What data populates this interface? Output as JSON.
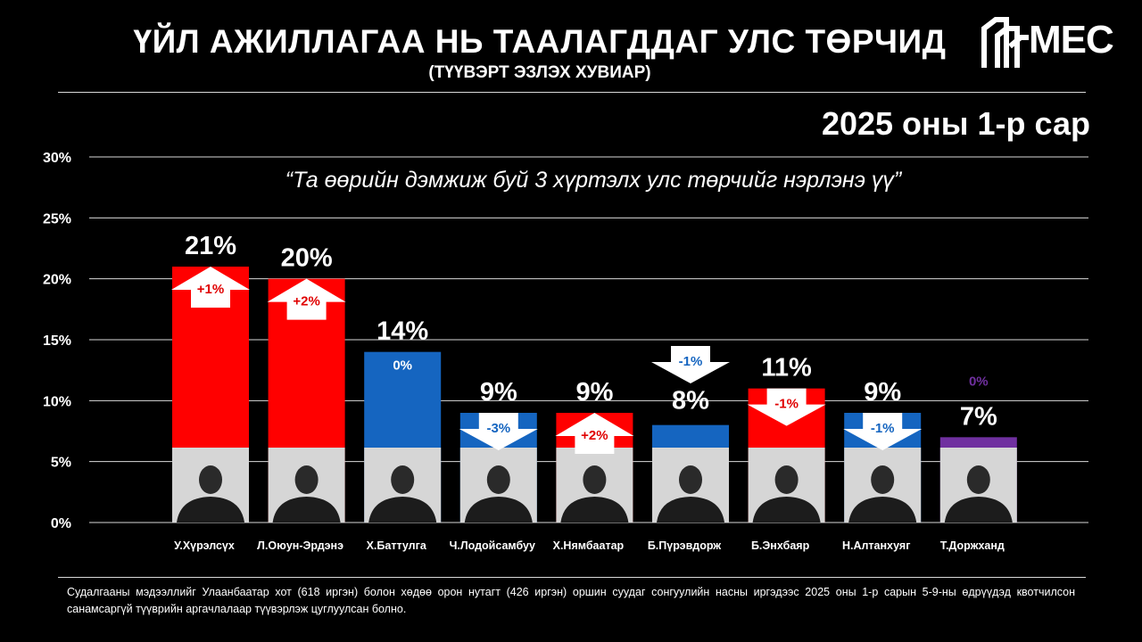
{
  "header": {
    "title": "ҮЙЛ АЖИЛЛАГАА НЬ ТААЛАГДДАГ УЛС ТӨРЧИД",
    "subtitle": "(ТҮҮВЭРТ ЭЗЛЭХ ХУВИАР)",
    "logo_text": "MEC"
  },
  "period": "2025 оны 1-р сар",
  "question": "“Та өөрийн дэмжиж буй 3 хүртэлх улс төрчийг нэрлэнэ үү”",
  "footer": "Судалгааны мэдээллийг Улаанбаатар хот (618 иргэн) болон хөдөө орон нутагт (426 иргэн) оршин суудаг сонгуулийн насны иргэдээс 2025 оны 1-р сарын 5-9-ны өдрүүдэд квотчилсон санамсаргүй түүврийн аргачлалаар түүвэрлэж цуглуулсан болно.",
  "chart_data": {
    "type": "bar",
    "title": "ҮЙЛ АЖИЛЛАГАА НЬ ТААЛАГДДАГ УЛС ТӨРЧИД",
    "ylim": [
      0,
      30
    ],
    "yticks": [
      "0%",
      "5%",
      "10%",
      "15%",
      "20%",
      "25%",
      "30%"
    ],
    "grid": true,
    "categories": [
      "У.Хүрэлсүх",
      "Л.Оюун-Эрдэнэ",
      "Х.Баттулга",
      "Ч.Лодойсамбуу",
      "Х.Нямбаатар",
      "Б.Пүрэвдорж",
      "Б.Энхбаяр",
      "Н.Алтанхуяг",
      "Т.Доржханд"
    ],
    "values": [
      21,
      20,
      14,
      9,
      9,
      8,
      11,
      9,
      7
    ],
    "value_labels": [
      "21%",
      "20%",
      "14%",
      "9%",
      "9%",
      "8%",
      "11%",
      "9%",
      "7%"
    ],
    "changes": [
      "+1%",
      "+2%",
      "0%",
      "-3%",
      "+2%",
      "-1%",
      "-1%",
      "-1%",
      "0%"
    ],
    "change_direction": [
      "up",
      "up",
      "none",
      "down",
      "up",
      "down",
      "down",
      "down",
      "none"
    ],
    "colors": [
      "#ff0000",
      "#ff0000",
      "#1565c0",
      "#1565c0",
      "#ff0000",
      "#1565c0",
      "#ff0000",
      "#1565c0",
      "#7030a0"
    ]
  }
}
